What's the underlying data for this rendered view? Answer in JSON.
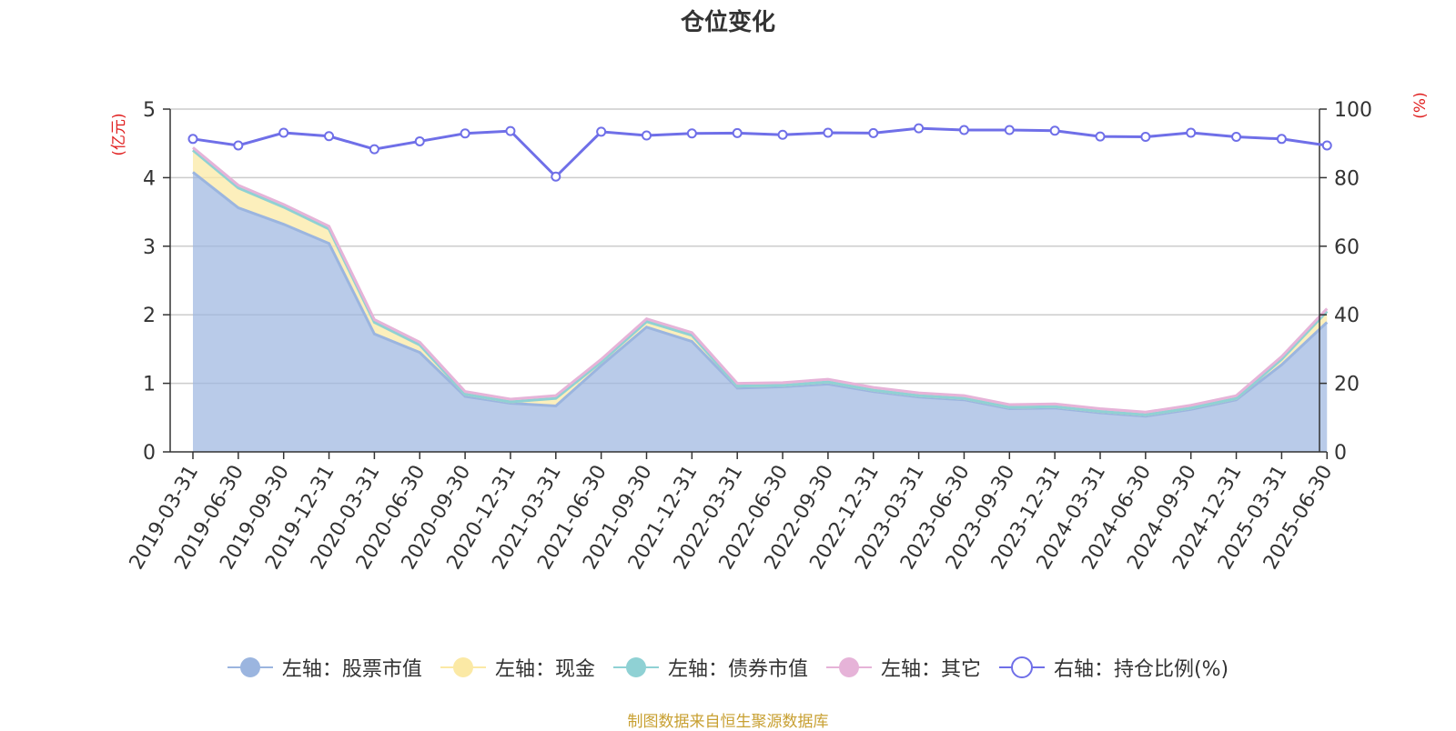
{
  "chart_data": {
    "type": "area",
    "title": "仓位变化",
    "ylabel_left": "(亿元)",
    "ylabel_right": "(%)",
    "ylim_left": [
      0,
      5
    ],
    "ylim_right": [
      0,
      100
    ],
    "left_ticks": [
      "0",
      "1",
      "2",
      "3",
      "4",
      "5"
    ],
    "right_ticks": [
      "0",
      "20",
      "40",
      "60",
      "80",
      "100"
    ],
    "grid": true,
    "legend_position": "bottom",
    "stacked": true,
    "categories": [
      "2019-03-31",
      "2019-06-30",
      "2019-09-30",
      "2019-12-31",
      "2020-03-31",
      "2020-06-30",
      "2020-09-30",
      "2020-12-31",
      "2021-03-31",
      "2021-06-30",
      "2021-09-30",
      "2021-12-31",
      "2022-03-31",
      "2022-06-30",
      "2022-09-30",
      "2022-12-31",
      "2023-03-31",
      "2023-06-30",
      "2023-09-30",
      "2023-12-31",
      "2024-03-31",
      "2024-06-30",
      "2024-09-30",
      "2024-12-31",
      "2025-03-31",
      "2025-06-30"
    ],
    "series": [
      {
        "name": "左轴：股票市值",
        "axis": "left",
        "color": "#9bb5df",
        "values": [
          4.08,
          3.56,
          3.32,
          3.04,
          1.72,
          1.45,
          0.81,
          0.71,
          0.67,
          1.26,
          1.82,
          1.61,
          0.93,
          0.95,
          0.99,
          0.88,
          0.8,
          0.76,
          0.63,
          0.64,
          0.57,
          0.52,
          0.62,
          0.76,
          1.27,
          1.89
        ]
      },
      {
        "name": "左轴：现金",
        "axis": "left",
        "color": "#fbe9a5",
        "values": [
          0.32,
          0.29,
          0.25,
          0.21,
          0.17,
          0.11,
          0.03,
          0.02,
          0.11,
          0.05,
          0.08,
          0.09,
          0.03,
          0.02,
          0.03,
          0.02,
          0.02,
          0.02,
          0.02,
          0.02,
          0.02,
          0.02,
          0.02,
          0.02,
          0.08,
          0.16
        ]
      },
      {
        "name": "左轴：债券市值",
        "axis": "left",
        "color": "#8fd1d4",
        "values": [
          0,
          0,
          0,
          0,
          0,
          0,
          0,
          0,
          0,
          0,
          0,
          0,
          0,
          0,
          0,
          0,
          0,
          0,
          0,
          0,
          0,
          0,
          0,
          0,
          0,
          0
        ]
      },
      {
        "name": "左轴：其它",
        "axis": "left",
        "color": "#e6b3d8",
        "values": [
          0.04,
          0.04,
          0.04,
          0.04,
          0.04,
          0.04,
          0.04,
          0.04,
          0.04,
          0.04,
          0.04,
          0.04,
          0.04,
          0.04,
          0.04,
          0.04,
          0.04,
          0.04,
          0.04,
          0.04,
          0.04,
          0.04,
          0.04,
          0.04,
          0.04,
          0.04
        ]
      },
      {
        "name": "右轴：持仓比例(%)",
        "axis": "right",
        "color": "#6f6fe8",
        "values": [
          91.3,
          89.4,
          93.1,
          92.1,
          88.3,
          90.6,
          92.9,
          93.6,
          80.3,
          93.4,
          92.3,
          92.9,
          93.0,
          92.5,
          93.1,
          93.0,
          94.4,
          93.9,
          93.9,
          93.7,
          92.0,
          91.9,
          93.1,
          91.9,
          91.3,
          89.4
        ]
      }
    ]
  },
  "source_note": "制图数据来自恒生聚源数据库"
}
